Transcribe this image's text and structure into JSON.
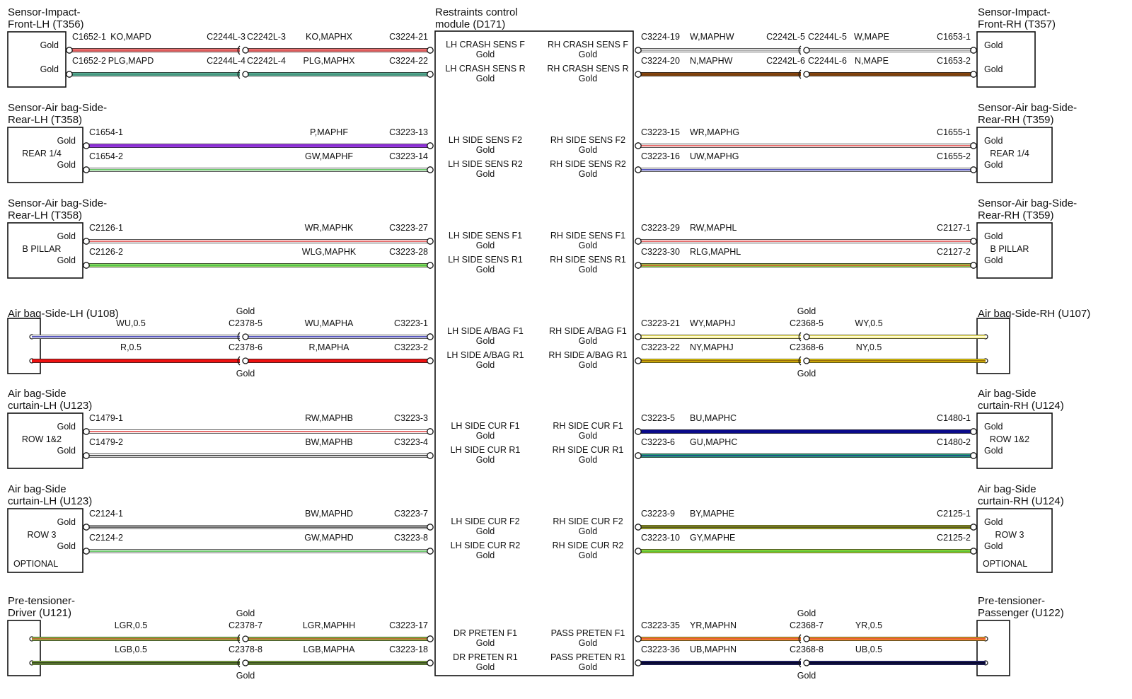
{
  "module": {
    "title_lines": [
      "Restraints control",
      "module (D171)"
    ],
    "rows": [
      {
        "left_pin": "LH CRASH SENS F",
        "left_plating": "Gold",
        "right_pin": "RH CRASH SENS F",
        "right_plating": "Gold"
      },
      {
        "left_pin": "LH CRASH SENS R",
        "left_plating": "Gold",
        "right_pin": "RH CRASH SENS R",
        "right_plating": "Gold"
      },
      {
        "left_pin": "LH SIDE SENS F2",
        "left_plating": "Gold",
        "right_pin": "RH SIDE SENS F2",
        "right_plating": "Gold"
      },
      {
        "left_pin": "LH SIDE SENS R2",
        "left_plating": "Gold",
        "right_pin": "RH SIDE SENS R2",
        "right_plating": "Gold"
      },
      {
        "left_pin": "LH SIDE SENS F1",
        "left_plating": "Gold",
        "right_pin": "RH SIDE SENS F1",
        "right_plating": "Gold"
      },
      {
        "left_pin": "LH SIDE SENS R1",
        "left_plating": "Gold",
        "right_pin": "RH SIDE SENS R1",
        "right_plating": "Gold"
      },
      {
        "left_pin": "LH SIDE A/BAG F1",
        "left_plating": "Gold",
        "right_pin": "RH SIDE A/BAG F1",
        "right_plating": "Gold"
      },
      {
        "left_pin": "LH SIDE A/BAG R1",
        "left_plating": "Gold",
        "right_pin": "RH SIDE A/BAG R1",
        "right_plating": "Gold"
      },
      {
        "left_pin": "LH SIDE CUR F1",
        "left_plating": "Gold",
        "right_pin": "RH SIDE CUR F1",
        "right_plating": "Gold"
      },
      {
        "left_pin": "LH SIDE CUR R1",
        "left_plating": "Gold",
        "right_pin": "RH SIDE CUR R1",
        "right_plating": "Gold"
      },
      {
        "left_pin": "LH SIDE CUR F2",
        "left_plating": "Gold",
        "right_pin": "RH SIDE CUR F2",
        "right_plating": "Gold"
      },
      {
        "left_pin": "LH SIDE CUR R2",
        "left_plating": "Gold",
        "right_pin": "RH SIDE CUR R2",
        "right_plating": "Gold"
      },
      {
        "left_pin": "DR PRETEN F1",
        "left_plating": "Gold",
        "right_pin": "PASS PRETEN F1",
        "right_plating": "Gold"
      },
      {
        "left_pin": "DR PRETEN R1",
        "left_plating": "Gold",
        "right_pin": "PASS PRETEN R1",
        "right_plating": "Gold"
      }
    ]
  },
  "left_components": [
    {
      "title_lines": [
        "Sensor-Impact-",
        "Front-LH (T356)"
      ],
      "kind": "sensor",
      "inner_label": "",
      "optional_label": "",
      "pin_plating": [
        "Gold",
        "Gold"
      ]
    },
    {
      "title_lines": [
        "Sensor-Air bag-Side-",
        "Rear-LH (T358)"
      ],
      "kind": "sensor",
      "inner_label": "REAR 1/4",
      "optional_label": "",
      "pin_plating": [
        "Gold",
        "Gold"
      ]
    },
    {
      "title_lines": [
        "Sensor-Air bag-Side-",
        "Rear-LH (T358)"
      ],
      "kind": "sensor",
      "inner_label": "B PILLAR",
      "optional_label": "",
      "pin_plating": [
        "Gold",
        "Gold"
      ]
    },
    {
      "title_lines": [
        "Air bag-Side-LH (U108)"
      ],
      "kind": "squib",
      "inner_label": "",
      "optional_label": "",
      "pin_plating": []
    },
    {
      "title_lines": [
        "Air bag-Side",
        "curtain-LH (U123)"
      ],
      "kind": "sensor",
      "inner_label": "ROW 1&2",
      "optional_label": "",
      "pin_plating": [
        "Gold",
        "Gold"
      ]
    },
    {
      "title_lines": [
        "Air bag-Side",
        "curtain-LH (U123)"
      ],
      "kind": "sensor",
      "inner_label": "ROW 3",
      "optional_label": "OPTIONAL",
      "pin_plating": [
        "Gold",
        "Gold"
      ]
    },
    {
      "title_lines": [
        "Pre-tensioner-",
        "Driver (U121)"
      ],
      "kind": "squib",
      "inner_label": "",
      "optional_label": "",
      "pin_plating": []
    }
  ],
  "right_components": [
    {
      "title_lines": [
        "Sensor-Impact-",
        "Front-RH (T357)"
      ],
      "kind": "sensor",
      "inner_label": "",
      "optional_label": "",
      "pin_plating": [
        "Gold",
        "Gold"
      ]
    },
    {
      "title_lines": [
        "Sensor-Air bag-Side-",
        "Rear-RH (T359)"
      ],
      "kind": "sensor",
      "inner_label": "REAR 1/4",
      "optional_label": "",
      "pin_plating": [
        "Gold",
        "Gold"
      ]
    },
    {
      "title_lines": [
        "Sensor-Air bag-Side-",
        "Rear-RH (T359)"
      ],
      "kind": "sensor",
      "inner_label": "B PILLAR",
      "optional_label": "",
      "pin_plating": [
        "Gold",
        "Gold"
      ]
    },
    {
      "title_lines": [
        "Air bag-Side-RH (U107)"
      ],
      "kind": "squib",
      "inner_label": "",
      "optional_label": "",
      "pin_plating": []
    },
    {
      "title_lines": [
        "Air bag-Side",
        "curtain-RH (U124)"
      ],
      "kind": "sensor",
      "inner_label": "ROW 1&2",
      "optional_label": "",
      "pin_plating": [
        "Gold",
        "Gold"
      ]
    },
    {
      "title_lines": [
        "Air bag-Side",
        "curtain-RH (U124)"
      ],
      "kind": "sensor",
      "inner_label": "ROW 3",
      "optional_label": "OPTIONAL",
      "pin_plating": [
        "Gold",
        "Gold"
      ]
    },
    {
      "title_lines": [
        "Pre-tensioner-",
        "Passenger (U122)"
      ],
      "kind": "squib",
      "inner_label": "",
      "optional_label": "",
      "pin_plating": []
    }
  ],
  "left_wires": [
    {
      "color": "#f08080",
      "stripe": "#d85050",
      "end_connector": "C1652-1",
      "device_circuit": "KO,MAPD",
      "inline_out": "C2244L-3",
      "inline_in": "C2242L-3",
      "inline_plating": "",
      "module_circuit": "KO,MAPHX",
      "module_connector": "C3224-21"
    },
    {
      "color": "#5fb39a",
      "stripe": "#3f8f78",
      "end_connector": "C1652-2",
      "device_circuit": "PLG,MAPD",
      "inline_out": "C2244L-4",
      "inline_in": "C2242L-4",
      "inline_plating": "",
      "module_circuit": "PLG,MAPHX",
      "module_connector": "C3224-22"
    },
    {
      "color": "#a040e8",
      "stripe": "#8428d0",
      "end_connector": "C1654-1",
      "device_circuit": "",
      "inline_out": "",
      "inline_in": "",
      "inline_plating": "",
      "module_circuit": "P,MAPHF",
      "module_connector": "C3223-13"
    },
    {
      "color": "#ffffff",
      "stripe": "#3fb53f",
      "end_connector": "C1654-2",
      "device_circuit": "",
      "inline_out": "",
      "inline_in": "",
      "inline_plating": "",
      "module_circuit": "GW,MAPHF",
      "module_connector": "C3223-14"
    },
    {
      "color": "#ffffff",
      "stripe": "#e04040",
      "end_connector": "C2126-1",
      "device_circuit": "",
      "inline_out": "",
      "inline_in": "",
      "inline_plating": "",
      "module_circuit": "WR,MAPHK",
      "module_connector": "C3223-27"
    },
    {
      "color": "#9ae86a",
      "stripe": "#3fb53f",
      "end_connector": "C2126-2",
      "device_circuit": "",
      "inline_out": "",
      "inline_in": "",
      "inline_plating": "",
      "module_circuit": "WLG,MAPHK",
      "module_connector": "C3223-28"
    },
    {
      "color": "#ffffff",
      "stripe": "#2222aa",
      "end_connector": "",
      "device_circuit": "WU,0.5",
      "inline_out": "C2378-5",
      "inline_in": "",
      "inline_plating": "Gold",
      "module_circuit": "WU,MAPHA",
      "module_connector": "C3223-1"
    },
    {
      "color": "#ee1111",
      "stripe": "#ee1111",
      "end_connector": "",
      "device_circuit": "R,0.5",
      "inline_out": "C2378-6",
      "inline_in": "",
      "inline_plating": "Gold",
      "module_circuit": "R,MAPHA",
      "module_connector": "C3223-2"
    },
    {
      "color": "#ffffff",
      "stripe": "#e04040",
      "end_connector": "C1479-1",
      "device_circuit": "",
      "inline_out": "",
      "inline_in": "",
      "inline_plating": "",
      "module_circuit": "RW,MAPHB",
      "module_connector": "C3223-3"
    },
    {
      "color": "#ffffff",
      "stripe": "#222222",
      "end_connector": "C1479-2",
      "device_circuit": "",
      "inline_out": "",
      "inline_in": "",
      "inline_plating": "",
      "module_circuit": "BW,MAPHB",
      "module_connector": "C3223-4"
    },
    {
      "color": "#ffffff",
      "stripe": "#222222",
      "end_connector": "C2124-1",
      "device_circuit": "",
      "inline_out": "",
      "inline_in": "",
      "inline_plating": "",
      "module_circuit": "BW,MAPHD",
      "module_connector": "C3223-7"
    },
    {
      "color": "#ffffff",
      "stripe": "#3fb53f",
      "end_connector": "C2124-2",
      "device_circuit": "",
      "inline_out": "",
      "inline_in": "",
      "inline_plating": "",
      "module_circuit": "GW,MAPHD",
      "module_connector": "C3223-8"
    },
    {
      "color": "#9ad24a",
      "stripe": "#c05030",
      "end_connector": "",
      "device_circuit": "LGR,0.5",
      "inline_out": "C2378-7",
      "inline_in": "",
      "inline_plating": "Gold",
      "module_circuit": "LGR,MAPHH",
      "module_connector": "C3223-17"
    },
    {
      "color": "#9ad24a",
      "stripe": "#111111",
      "end_connector": "",
      "device_circuit": "LGB,0.5",
      "inline_out": "C2378-8",
      "inline_in": "",
      "inline_plating": "Gold",
      "module_circuit": "LGB,MAPHA",
      "module_connector": "C3223-18"
    }
  ],
  "right_wires": [
    {
      "color": "#ffffff",
      "stripe": "#999999",
      "module_connector": "C3224-19",
      "module_circuit": "W,MAPHW",
      "inline_out": "C2242L-5",
      "inline_in": "C2244L-5",
      "inline_plating": "",
      "device_circuit": "W,MAPE",
      "end_connector": "C1653-1"
    },
    {
      "color": "#8b4a12",
      "stripe": "#7a3d0a",
      "module_connector": "C3224-20",
      "module_circuit": "N,MAPHW",
      "inline_out": "C2242L-6",
      "inline_in": "C2244L-6",
      "inline_plating": "",
      "device_circuit": "N,MAPE",
      "end_connector": "C1653-2"
    },
    {
      "color": "#ffffff",
      "stripe": "#e04040",
      "module_connector": "C3223-15",
      "module_circuit": "WR,MAPHG",
      "inline_out": "",
      "inline_in": "",
      "inline_plating": "",
      "device_circuit": "",
      "end_connector": "C1655-1"
    },
    {
      "color": "#ffffff",
      "stripe": "#2222aa",
      "module_connector": "C3223-16",
      "module_circuit": "UW,MAPHG",
      "inline_out": "",
      "inline_in": "",
      "inline_plating": "",
      "device_circuit": "",
      "end_connector": "C1655-2"
    },
    {
      "color": "#ffffff",
      "stripe": "#e04040",
      "module_connector": "C3223-29",
      "module_circuit": "RW,MAPHL",
      "inline_out": "",
      "inline_in": "",
      "inline_plating": "",
      "device_circuit": "",
      "end_connector": "C2127-1"
    },
    {
      "color": "#9ad24a",
      "stripe": "#d05030",
      "module_connector": "C3223-30",
      "module_circuit": "RLG,MAPHL",
      "inline_out": "",
      "inline_in": "",
      "inline_plating": "",
      "device_circuit": "",
      "end_connector": "C2127-2"
    },
    {
      "color": "#fff56a",
      "stripe": "#ffffff",
      "module_connector": "C3223-21",
      "module_circuit": "WY,MAPHJ",
      "inline_out": "C2368-5",
      "inline_in": "",
      "inline_plating": "Gold",
      "device_circuit": "WY,0.5",
      "end_connector": ""
    },
    {
      "color": "#ffe000",
      "stripe": "#7a4a10",
      "module_connector": "C3223-22",
      "module_circuit": "NY,MAPHJ",
      "inline_out": "C2368-6",
      "inline_in": "",
      "inline_plating": "Gold",
      "device_circuit": "NY,0.5",
      "end_connector": ""
    },
    {
      "color": "#0a0a8a",
      "stripe": "#0a0a8a",
      "module_connector": "C3223-5",
      "module_circuit": "BU,MAPHC",
      "inline_out": "",
      "inline_in": "",
      "inline_plating": "",
      "device_circuit": "",
      "end_connector": "C1480-1"
    },
    {
      "color": "#2aa07a",
      "stripe": "#1c3a8a",
      "module_connector": "C3223-6",
      "module_circuit": "GU,MAPHC",
      "inline_out": "",
      "inline_in": "",
      "inline_plating": "",
      "device_circuit": "",
      "end_connector": "C1480-2"
    },
    {
      "color": "#c8d020",
      "stripe": "#222222",
      "module_connector": "C3223-9",
      "module_circuit": "BY,MAPHE",
      "inline_out": "",
      "inline_in": "",
      "inline_plating": "",
      "device_circuit": "",
      "end_connector": "C2125-1"
    },
    {
      "color": "#b8e830",
      "stripe": "#3fb53f",
      "module_connector": "C3223-10",
      "module_circuit": "GY,MAPHE",
      "inline_out": "",
      "inline_in": "",
      "inline_plating": "",
      "device_circuit": "",
      "end_connector": "C2125-2"
    },
    {
      "color": "#ffb020",
      "stripe": "#e04040",
      "module_connector": "C3223-35",
      "module_circuit": "YR,MAPHN",
      "inline_out": "C2368-7",
      "inline_in": "",
      "inline_plating": "Gold",
      "device_circuit": "YR,0.5",
      "end_connector": ""
    },
    {
      "color": "#1a1a80",
      "stripe": "#000000",
      "module_connector": "C3223-36",
      "module_circuit": "UB,MAPHN",
      "inline_out": "C2368-8",
      "inline_in": "",
      "inline_plating": "Gold",
      "device_circuit": "UB,0.5",
      "end_connector": ""
    }
  ]
}
